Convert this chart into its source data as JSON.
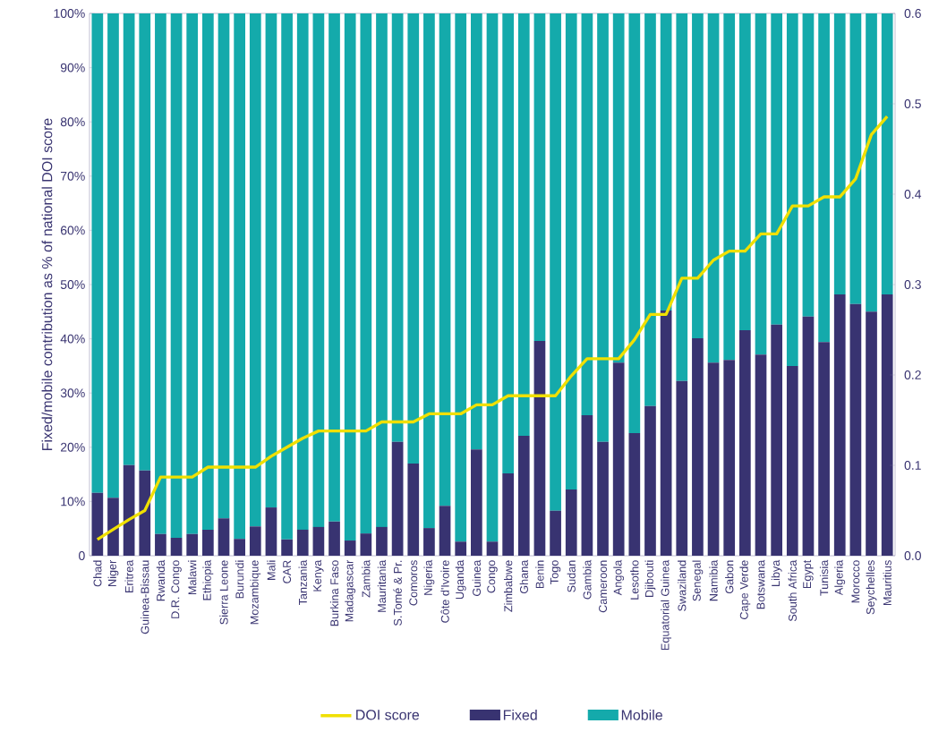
{
  "chart_data": {
    "type": "bar",
    "stacked": true,
    "ylabel": "Fixed/mobile contribution as % of national DOI score",
    "categories": [
      "Chad",
      "Niger",
      "Eritrea",
      "Guinea-Bissau",
      "Rwanda",
      "D.R. Congo",
      "Malawi",
      "Ethiopia",
      "Sierra Leone",
      "Burundi",
      "Mozambique",
      "Mali",
      "CAR",
      "Tanzania",
      "Kenya",
      "Burkina Faso",
      "Madagascar",
      "Zambia",
      "Mauritania",
      "S.Tomé & Pr.",
      "Comoros",
      "Nigeria",
      "Côte d'Ivoire",
      "Uganda",
      "Guinea",
      "Congo",
      "Zimbabwe",
      "Ghana",
      "Benin",
      "Togo",
      "Sudan",
      "Gambia",
      "Cameroon",
      "Angola",
      "Lesotho",
      "Djibouti",
      "Equatorial Guinea",
      "Swaziland",
      "Senegal",
      "Namibia",
      "Gabon",
      "Cape Verde",
      "Botswana",
      "Libya",
      "South Africa",
      "Egypt",
      "Tunisia",
      "Algeria",
      "Morocco",
      "Seychelles",
      "Mauritius"
    ],
    "series": [
      {
        "name": "DOI score",
        "type": "line",
        "axis": "y2",
        "color": "#f0e000",
        "values": [
          0.018,
          0.029,
          0.04,
          0.05,
          0.087,
          0.087,
          0.087,
          0.098,
          0.098,
          0.098,
          0.098,
          0.11,
          0.12,
          0.13,
          0.138,
          0.138,
          0.138,
          0.138,
          0.148,
          0.148,
          0.148,
          0.157,
          0.157,
          0.157,
          0.167,
          0.167,
          0.177,
          0.177,
          0.177,
          0.177,
          0.199,
          0.218,
          0.218,
          0.218,
          0.239,
          0.267,
          0.267,
          0.307,
          0.307,
          0.327,
          0.337,
          0.337,
          0.356,
          0.356,
          0.387,
          0.387,
          0.397,
          0.397,
          0.417,
          0.466,
          0.486
        ]
      },
      {
        "name": "Fixed",
        "type": "bar",
        "color": "#383371",
        "values": [
          11.6,
          10.7,
          16.7,
          15.7,
          4,
          3.3,
          4,
          4.8,
          6.9,
          3.1,
          5.4,
          8.9,
          3,
          4.8,
          5.3,
          6.3,
          2.8,
          4.1,
          5.3,
          21,
          17,
          5.1,
          9.2,
          2.6,
          19.6,
          2.6,
          15.2,
          22.1,
          39.6,
          8.3,
          12.2,
          25.9,
          21,
          35.6,
          22.6,
          27.6,
          45.2,
          32.2,
          40.1,
          35.6,
          36.1,
          41.6,
          37.1,
          42.6,
          35,
          44.1,
          39.4,
          48.2,
          46.4,
          45,
          48.2
        ]
      },
      {
        "name": "Mobile",
        "type": "bar",
        "color": "#14aaab",
        "values": [
          88.4,
          89.3,
          83.3,
          84.3,
          96,
          96.7,
          96,
          95.2,
          93.1,
          96.9,
          94.6,
          91.1,
          97,
          95.2,
          94.7,
          93.7,
          97.2,
          95.9,
          94.7,
          79,
          83,
          94.9,
          90.8,
          97.4,
          80.4,
          97.4,
          84.8,
          77.9,
          60.4,
          91.7,
          87.8,
          74.1,
          79,
          64.4,
          77.4,
          72.4,
          54.8,
          67.8,
          59.9,
          64.4,
          63.9,
          58.4,
          62.9,
          57.4,
          65,
          55.9,
          60.6,
          51.8,
          53.6,
          55,
          51.8
        ]
      }
    ],
    "ylim": [
      0,
      100
    ],
    "yticks": [
      {
        "value": 0,
        "label": "0"
      },
      {
        "value": 10,
        "label": "10%"
      },
      {
        "value": 20,
        "label": "20%"
      },
      {
        "value": 30,
        "label": "30%"
      },
      {
        "value": 40,
        "label": "40%"
      },
      {
        "value": 50,
        "label": "50%"
      },
      {
        "value": 60,
        "label": "60%"
      },
      {
        "value": 70,
        "label": "70%"
      },
      {
        "value": 80,
        "label": "80%"
      },
      {
        "value": 90,
        "label": "90%"
      },
      {
        "value": 100,
        "label": "100%"
      }
    ],
    "y2lim": [
      0,
      0.6
    ],
    "y2ticks": [
      {
        "value": 0,
        "label": "0.0"
      },
      {
        "value": 0.1,
        "label": "0.1"
      },
      {
        "value": 0.2,
        "label": "0.2"
      },
      {
        "value": 0.3,
        "label": "0.3"
      },
      {
        "value": 0.4,
        "label": "0.4"
      },
      {
        "value": 0.5,
        "label": "0.5"
      },
      {
        "value": 0.6,
        "label": "0.6"
      }
    ],
    "legend": "bottom",
    "grid": false
  }
}
